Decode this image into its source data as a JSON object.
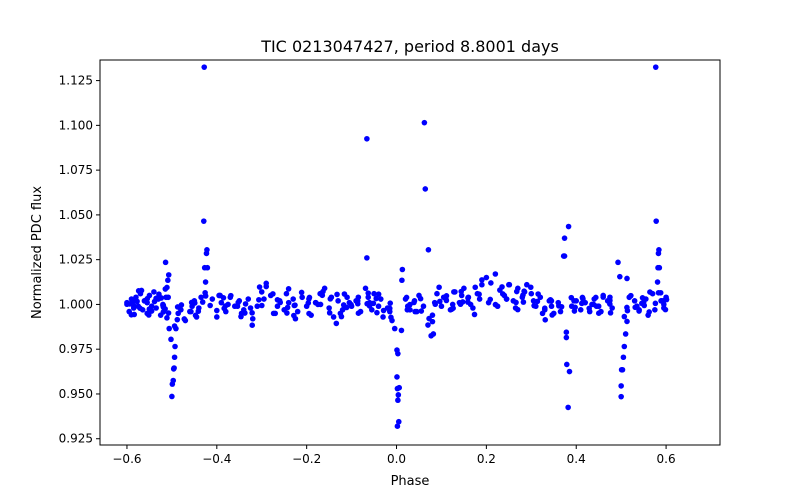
{
  "chart_data": {
    "type": "scatter",
    "title": "TIC 0213047427, period 8.8001 days",
    "xlabel": "Phase",
    "ylabel": "Normalized PDC flux",
    "xlim": [
      -0.66,
      0.72
    ],
    "ylim": [
      0.9215,
      1.1365
    ],
    "xticks": [
      {
        "value": -0.6,
        "label": "−0.6"
      },
      {
        "value": -0.4,
        "label": "−0.4"
      },
      {
        "value": -0.2,
        "label": "−0.2"
      },
      {
        "value": 0.0,
        "label": "0.0"
      },
      {
        "value": 0.2,
        "label": "0.2"
      },
      {
        "value": 0.4,
        "label": "0.4"
      },
      {
        "value": 0.6,
        "label": "0.6"
      }
    ],
    "yticks": [
      {
        "value": 0.925,
        "label": "0.925"
      },
      {
        "value": 0.95,
        "label": "0.950"
      },
      {
        "value": 0.975,
        "label": "0.975"
      },
      {
        "value": 1.0,
        "label": "1.000"
      },
      {
        "value": 1.025,
        "label": "1.025"
      },
      {
        "value": 1.05,
        "label": "1.050"
      },
      {
        "value": 1.075,
        "label": "1.075"
      },
      {
        "value": 1.1,
        "label": "1.100"
      },
      {
        "value": 1.125,
        "label": "1.125"
      }
    ],
    "series": [
      {
        "name": "flux",
        "color": "#0000ff",
        "marker": "circle",
        "points": [
          [
            -0.5,
            0.9486
          ],
          [
            -0.499,
            0.9555
          ],
          [
            -0.497,
            0.9575
          ],
          [
            -0.496,
            0.964
          ],
          [
            -0.495,
            0.9645
          ],
          [
            -0.494,
            0.9705
          ],
          [
            -0.493,
            0.9765
          ],
          [
            -0.502,
            0.9805
          ],
          [
            -0.506,
            0.9865
          ],
          [
            -0.491,
            0.9865
          ],
          [
            -0.488,
            0.9915
          ],
          [
            -0.486,
            0.995
          ],
          [
            -0.511,
            0.9925
          ],
          [
            -0.515,
            0.9975
          ],
          [
            -0.519,
            0.9985
          ],
          [
            -0.513,
            1.004
          ],
          [
            -0.509,
            1.0135
          ],
          [
            -0.514,
            1.0235
          ],
          [
            -0.507,
            1.0165
          ],
          [
            -0.511,
            1.0095
          ],
          [
            -0.428,
            1.1325
          ],
          [
            -0.429,
            1.0465
          ],
          [
            -0.422,
            1.0305
          ],
          [
            -0.423,
            1.0285
          ],
          [
            -0.427,
            1.0205
          ],
          [
            -0.421,
            1.0205
          ],
          [
            -0.425,
            1.0125
          ],
          [
            -0.426,
            1.0065
          ],
          [
            -0.066,
            1.0925
          ],
          [
            -0.066,
            1.026
          ],
          [
            -0.069,
            1.009
          ],
          [
            -0.063,
            1.004
          ],
          [
            0.001,
            0.9745
          ],
          [
            0.003,
            0.9725
          ],
          [
            0.001,
            0.9595
          ],
          [
            0.002,
            0.953
          ],
          [
            0.006,
            0.9535
          ],
          [
            0.004,
            0.9495
          ],
          [
            0.003,
            0.9465
          ],
          [
            0.005,
            0.9345
          ],
          [
            0.002,
            0.932
          ],
          [
            -0.004,
            0.9865
          ],
          [
            0.011,
            0.9855
          ],
          [
            0.013,
            1.0195
          ],
          [
            0.012,
            1.0135
          ],
          [
            0.062,
            1.1015
          ],
          [
            0.064,
            1.0645
          ],
          [
            0.071,
            1.0305
          ],
          [
            0.07,
            0.9885
          ],
          [
            0.077,
            0.9825
          ],
          [
            0.082,
            0.9835
          ],
          [
            0.374,
            1.037
          ],
          [
            0.372,
            1.027
          ],
          [
            0.374,
            1.027
          ],
          [
            0.383,
            1.0435
          ],
          [
            0.378,
            0.9845
          ],
          [
            0.378,
            0.9815
          ],
          [
            0.379,
            0.9665
          ],
          [
            0.385,
            0.9625
          ],
          [
            0.382,
            0.9425
          ],
          [
            0.493,
            1.0235
          ],
          [
            0.497,
            1.0155
          ],
          [
            0.5,
            0.9485
          ],
          [
            0.5,
            0.9545
          ],
          [
            0.501,
            0.9635
          ],
          [
            0.503,
            0.9635
          ],
          [
            0.505,
            0.9705
          ],
          [
            0.507,
            0.9765
          ],
          [
            0.51,
            0.9835
          ],
          [
            0.513,
            0.9905
          ],
          [
            0.514,
            0.9965
          ],
          [
            0.513,
            1.0145
          ],
          [
            0.518,
            1.004
          ],
          [
            0.577,
            1.1325
          ],
          [
            0.578,
            1.0465
          ],
          [
            0.584,
            1.0305
          ],
          [
            0.583,
            1.0285
          ],
          [
            0.582,
            1.0205
          ],
          [
            0.585,
            1.0205
          ],
          [
            0.581,
            1.0125
          ],
          [
            0.588,
            1.0065
          ],
          [
            -0.6,
            1.001
          ],
          [
            -0.595,
            0.996
          ],
          [
            -0.59,
            1.003
          ],
          [
            -0.585,
            0.998
          ],
          [
            -0.58,
            1.004
          ],
          [
            -0.575,
            0.999
          ],
          [
            -0.57,
            1.006
          ],
          [
            -0.565,
            0.997
          ],
          [
            -0.56,
            1.002
          ],
          [
            -0.555,
            0.995
          ],
          [
            -0.55,
            1.005
          ],
          [
            -0.545,
            0.999
          ],
          [
            -0.54,
            1.007
          ],
          [
            -0.535,
            0.998
          ],
          [
            -0.53,
            1.003
          ],
          [
            -0.525,
            0.994
          ],
          [
            -0.47,
            0.991
          ],
          [
            -0.46,
            0.996
          ],
          [
            -0.45,
            1.002
          ],
          [
            -0.44,
            0.998
          ],
          [
            -0.435,
            1.004
          ],
          [
            -0.41,
            1.003
          ],
          [
            -0.4,
            0.993
          ],
          [
            -0.39,
            1.001
          ],
          [
            -0.38,
            0.996
          ],
          [
            -0.37,
            1.004
          ],
          [
            -0.36,
            0.999
          ],
          [
            -0.35,
            1.002
          ],
          [
            -0.34,
            0.997
          ],
          [
            -0.33,
            1.003
          ],
          [
            -0.32,
            0.992
          ],
          [
            -0.31,
            0.999
          ],
          [
            -0.3,
            1.007
          ],
          [
            -0.29,
            1.01
          ],
          [
            -0.28,
            1.005
          ],
          [
            -0.27,
            0.995
          ],
          [
            -0.26,
            1.002
          ],
          [
            -0.25,
            0.997
          ],
          [
            -0.24,
            1.001
          ],
          [
            -0.23,
            1.003
          ],
          [
            -0.22,
            0.996
          ],
          [
            -0.21,
            1.004
          ],
          [
            -0.2,
            0.999
          ],
          [
            -0.19,
            0.994
          ],
          [
            -0.18,
            1.001
          ],
          [
            -0.17,
            1.006
          ],
          [
            -0.16,
            1.009
          ],
          [
            -0.15,
            0.998
          ],
          [
            -0.14,
            0.993
          ],
          [
            -0.13,
            1.002
          ],
          [
            -0.12,
            0.997
          ],
          [
            -0.11,
            1.004
          ],
          [
            -0.1,
            0.999
          ],
          [
            -0.09,
            1.002
          ],
          [
            -0.08,
            0.996
          ],
          [
            -0.06,
            1.001
          ],
          [
            -0.05,
            1.006
          ],
          [
            -0.04,
            0.999
          ],
          [
            -0.03,
            0.993
          ],
          [
            -0.02,
            0.998
          ],
          [
            -0.01,
            0.991
          ],
          [
            0.02,
            1.003
          ],
          [
            0.03,
            0.997
          ],
          [
            0.04,
            1.002
          ],
          [
            0.05,
            1.005
          ],
          [
            0.06,
            0.999
          ],
          [
            0.08,
            0.994
          ],
          [
            0.09,
            1.006
          ],
          [
            0.1,
            0.999
          ],
          [
            0.11,
            1.003
          ],
          [
            0.12,
            0.997
          ],
          [
            0.13,
            1.007
          ],
          [
            0.14,
            1.001
          ],
          [
            0.15,
            1.009
          ],
          [
            0.16,
            1.004
          ],
          [
            0.17,
            0.998
          ],
          [
            0.18,
            1.006
          ],
          [
            0.19,
            1.011
          ],
          [
            0.2,
            1.015
          ],
          [
            0.21,
            1.012
          ],
          [
            0.22,
            1.017
          ],
          [
            0.23,
            1.008
          ],
          [
            0.24,
            1.005
          ],
          [
            0.25,
            1.011
          ],
          [
            0.26,
            1.002
          ],
          [
            0.27,
            1.009
          ],
          [
            0.28,
            1.004
          ],
          [
            0.29,
            1.011
          ],
          [
            0.3,
            1.006
          ],
          [
            0.31,
            0.999
          ],
          [
            0.32,
            1.004
          ],
          [
            0.33,
            0.997
          ],
          [
            0.34,
            1.002
          ],
          [
            0.35,
            0.995
          ],
          [
            0.36,
            1.001
          ],
          [
            0.39,
            0.999
          ],
          [
            0.4,
            1.002
          ],
          [
            0.41,
            0.997
          ],
          [
            0.42,
            1.001
          ],
          [
            0.43,
            0.996
          ],
          [
            0.44,
            1.003
          ],
          [
            0.45,
            0.999
          ],
          [
            0.46,
            1.005
          ],
          [
            0.47,
            1.002
          ],
          [
            0.48,
            0.998
          ],
          [
            0.53,
            1.002
          ],
          [
            0.54,
            0.997
          ],
          [
            0.55,
            1.001
          ],
          [
            0.56,
            0.994
          ],
          [
            0.57,
            1.006
          ],
          [
            0.59,
            1.002
          ],
          [
            0.595,
            0.998
          ],
          [
            0.6,
            1.004
          ],
          [
            -0.585,
            1.002
          ],
          [
            -0.555,
            1.001
          ],
          [
            -0.52,
            1.0
          ],
          [
            -0.48,
            0.997
          ],
          [
            -0.455,
            0.999
          ],
          [
            -0.445,
            0.993
          ],
          [
            -0.395,
            1.005
          ],
          [
            -0.375,
            1.0
          ],
          [
            -0.345,
            0.995
          ],
          [
            -0.325,
            0.998
          ],
          [
            -0.295,
            1.003
          ],
          [
            -0.265,
            0.999
          ],
          [
            -0.245,
            1.006
          ],
          [
            -0.225,
            0.992
          ],
          [
            -0.195,
            1.003
          ],
          [
            -0.175,
            1.0
          ],
          [
            -0.145,
            1.004
          ],
          [
            -0.125,
            0.995
          ],
          [
            -0.105,
            1.001
          ],
          [
            -0.085,
            1.004
          ],
          [
            -0.055,
            0.997
          ],
          [
            -0.035,
            1.003
          ],
          [
            -0.015,
            0.996
          ],
          [
            0.025,
            0.999
          ],
          [
            0.045,
            0.996
          ],
          [
            0.085,
            1.001
          ],
          [
            0.105,
            1.004
          ],
          [
            0.125,
            1.0
          ],
          [
            0.145,
            1.005
          ],
          [
            0.165,
            1.0
          ],
          [
            0.185,
            1.003
          ],
          [
            0.205,
            1.001
          ],
          [
            0.225,
            0.999
          ],
          [
            0.245,
            1.003
          ],
          [
            0.265,
            0.998
          ],
          [
            0.285,
            1.007
          ],
          [
            0.305,
            1.002
          ],
          [
            0.325,
            0.995
          ],
          [
            0.345,
            0.999
          ],
          [
            0.365,
            0.996
          ],
          [
            0.395,
            1.002
          ],
          [
            0.415,
            1.003
          ],
          [
            0.435,
            1.0
          ],
          [
            0.455,
            0.996
          ],
          [
            0.475,
            1.004
          ],
          [
            0.535,
            0.999
          ],
          [
            0.555,
            1.003
          ],
          [
            0.575,
            0.997
          ],
          [
            0.595,
            1.0
          ]
        ]
      }
    ]
  }
}
